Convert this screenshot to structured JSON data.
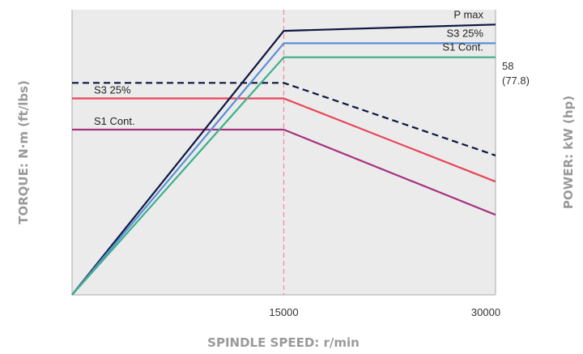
{
  "chart_data": {
    "type": "line",
    "xlabel": "SPINDLE SPEED: r/min",
    "ylabel_left": "TORQUE: N·m (ft/lbs)",
    "ylabel_right": "POWER: kW (hp)",
    "x_ticks": [
      "15000",
      "30000"
    ],
    "xlim": [
      0,
      30000
    ],
    "grid": false,
    "background": "#ebebeb",
    "reference_line": {
      "x": 15000,
      "color": "#f08c96"
    },
    "right_annotation": {
      "value": "58",
      "sub": "(77.8)"
    },
    "power_series": [
      {
        "name": "P max",
        "color": "#0d1640",
        "x": [
          0,
          15000,
          30000
        ],
        "y": [
          0,
          100,
          102.4
        ]
      },
      {
        "name": "S3 25%",
        "color": "#5b8fd6",
        "x": [
          0,
          15000,
          30000
        ],
        "y": [
          0,
          95.3,
          95.3
        ]
      },
      {
        "name": "S1 Cont.",
        "color": "#3cb08a",
        "x": [
          0,
          15000,
          30000
        ],
        "y": [
          0,
          90,
          90
        ]
      }
    ],
    "torque_series": [
      {
        "name": "",
        "color": "#0d1640",
        "dashed": true,
        "x": [
          0,
          15000,
          30000
        ],
        "y": [
          80.3,
          80.3,
          52.8
        ]
      },
      {
        "name": "S3 25%",
        "color": "#e8455a",
        "x": [
          0,
          15000,
          30000
        ],
        "y": [
          74.4,
          74.4,
          42.9
        ]
      },
      {
        "name": "S1 Cont.",
        "color": "#a6327f",
        "x": [
          0,
          15000,
          30000
        ],
        "y": [
          62.6,
          62.6,
          30.3
        ]
      }
    ]
  }
}
